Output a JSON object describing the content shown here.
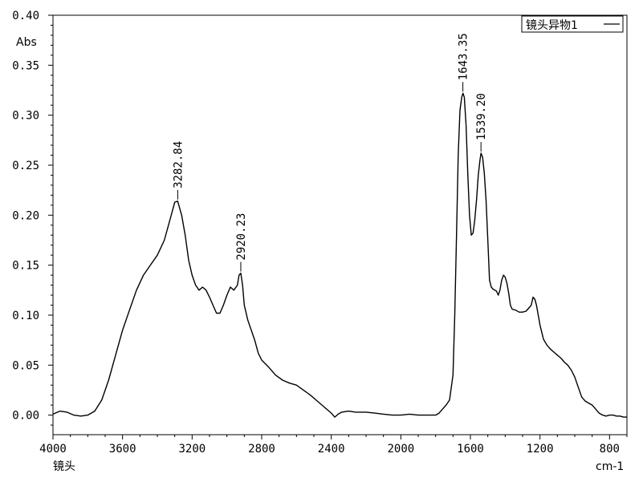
{
  "chart_data": {
    "type": "line",
    "title": "",
    "xlabel": "cm-1",
    "ylabel": "Abs",
    "footer_label": "镜头",
    "x_reversed": true,
    "xlim": [
      4000,
      700
    ],
    "ylim": [
      -0.02,
      0.4
    ],
    "x_ticks": [
      4000,
      3600,
      3200,
      2800,
      2400,
      2000,
      1600,
      1200,
      800
    ],
    "x_tick_labels": [
      "4000",
      "3600",
      "3200",
      "2800",
      "2400",
      "2000",
      "1600",
      "1200",
      "800"
    ],
    "y_ticks": [
      0.0,
      0.05,
      0.1,
      0.15,
      0.2,
      0.25,
      0.3,
      0.35,
      0.4
    ],
    "y_tick_labels": [
      "0.00",
      "0.05",
      "0.10",
      "0.15",
      "0.20",
      "0.25",
      "0.30",
      "0.35",
      "0.40"
    ],
    "grid": false,
    "legend_position": "top-right",
    "series": [
      {
        "name": "镜头异物1",
        "color": "#000000",
        "x": [
          4000,
          3960,
          3920,
          3880,
          3840,
          3800,
          3760,
          3720,
          3680,
          3640,
          3600,
          3560,
          3520,
          3480,
          3440,
          3400,
          3360,
          3320,
          3300,
          3283,
          3260,
          3240,
          3220,
          3200,
          3180,
          3160,
          3140,
          3120,
          3100,
          3080,
          3060,
          3040,
          3020,
          3000,
          2980,
          2960,
          2940,
          2930,
          2920,
          2910,
          2900,
          2880,
          2860,
          2840,
          2820,
          2800,
          2760,
          2720,
          2680,
          2640,
          2600,
          2560,
          2520,
          2480,
          2440,
          2400,
          2380,
          2360,
          2340,
          2300,
          2260,
          2200,
          2150,
          2100,
          2050,
          2000,
          1950,
          1900,
          1850,
          1800,
          1780,
          1760,
          1740,
          1720,
          1700,
          1690,
          1680,
          1670,
          1660,
          1650,
          1643,
          1635,
          1625,
          1615,
          1605,
          1595,
          1585,
          1575,
          1565,
          1555,
          1545,
          1539,
          1530,
          1520,
          1510,
          1500,
          1490,
          1480,
          1470,
          1460,
          1450,
          1440,
          1430,
          1420,
          1410,
          1400,
          1390,
          1380,
          1370,
          1360,
          1340,
          1320,
          1300,
          1280,
          1260,
          1250,
          1240,
          1230,
          1220,
          1200,
          1180,
          1160,
          1140,
          1120,
          1100,
          1080,
          1060,
          1040,
          1020,
          1000,
          980,
          960,
          940,
          920,
          900,
          880,
          860,
          840,
          820,
          800,
          780,
          760,
          740,
          720,
          700
        ],
        "y": [
          0.001,
          0.004,
          0.003,
          0.0,
          -0.001,
          0.0,
          0.004,
          0.015,
          0.035,
          0.06,
          0.085,
          0.105,
          0.125,
          0.14,
          0.15,
          0.16,
          0.175,
          0.2,
          0.213,
          0.214,
          0.2,
          0.18,
          0.155,
          0.14,
          0.13,
          0.125,
          0.128,
          0.125,
          0.118,
          0.11,
          0.102,
          0.102,
          0.11,
          0.12,
          0.128,
          0.125,
          0.13,
          0.14,
          0.142,
          0.13,
          0.11,
          0.095,
          0.085,
          0.075,
          0.062,
          0.055,
          0.048,
          0.04,
          0.035,
          0.032,
          0.03,
          0.025,
          0.02,
          0.014,
          0.008,
          0.002,
          -0.002,
          0.001,
          0.003,
          0.004,
          0.003,
          0.003,
          0.002,
          0.001,
          0.0,
          0.0,
          0.001,
          0.0,
          0.0,
          0.0,
          0.002,
          0.006,
          0.01,
          0.015,
          0.04,
          0.1,
          0.18,
          0.26,
          0.305,
          0.318,
          0.322,
          0.318,
          0.29,
          0.24,
          0.2,
          0.18,
          0.182,
          0.195,
          0.215,
          0.24,
          0.255,
          0.262,
          0.258,
          0.242,
          0.215,
          0.175,
          0.135,
          0.128,
          0.126,
          0.125,
          0.124,
          0.12,
          0.125,
          0.135,
          0.14,
          0.138,
          0.132,
          0.122,
          0.11,
          0.106,
          0.105,
          0.103,
          0.103,
          0.104,
          0.108,
          0.11,
          0.118,
          0.116,
          0.11,
          0.09,
          0.076,
          0.07,
          0.066,
          0.063,
          0.06,
          0.057,
          0.053,
          0.05,
          0.045,
          0.038,
          0.028,
          0.018,
          0.014,
          0.012,
          0.01,
          0.006,
          0.002,
          0.0,
          -0.001,
          0.0,
          0.0,
          -0.001,
          -0.001,
          -0.002,
          -0.002
        ]
      }
    ],
    "annotations": [
      {
        "x": 3282.84,
        "y": 0.214,
        "text": "3282.84"
      },
      {
        "x": 2920.23,
        "y": 0.142,
        "text": "2920.23"
      },
      {
        "x": 1643.35,
        "y": 0.322,
        "text": "1643.35"
      },
      {
        "x": 1539.2,
        "y": 0.262,
        "text": "1539.20"
      }
    ]
  }
}
